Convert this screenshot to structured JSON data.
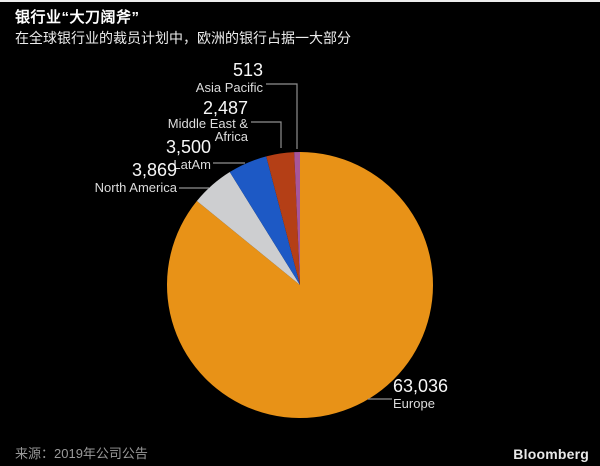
{
  "header": {
    "title": "银行业“大刀阔斧”",
    "subtitle": "在全球银行业的裁员计划中，欧洲的银行占据一大部分"
  },
  "footer": {
    "source": "来源：2019年公司公告",
    "brand": "Bloomberg"
  },
  "chart_data": {
    "type": "pie",
    "title": "银行业“大刀阔斧”",
    "subtitle": "在全球银行业的裁员计划中，欧洲的银行占据一大部分",
    "source": "来源：2019年公司公告",
    "start_angle_deg": 0,
    "direction": "clockwise",
    "background": "#000000",
    "legend_position": "callout-labels",
    "slices": [
      {
        "label": "Europe",
        "value": 63036,
        "display_value": "63,036",
        "color": "#e89217"
      },
      {
        "label": "North America",
        "value": 3869,
        "display_value": "3,869",
        "color": "#cdced0"
      },
      {
        "label": "LatAm",
        "value": 3500,
        "display_value": "3,500",
        "color": "#1d59c5"
      },
      {
        "label": "Middle East & Africa",
        "value": 2487,
        "display_value": "2,487",
        "color": "#b43f16"
      },
      {
        "label": "Asia Pacific",
        "value": 513,
        "display_value": "513",
        "color": "#a7569b"
      }
    ]
  }
}
